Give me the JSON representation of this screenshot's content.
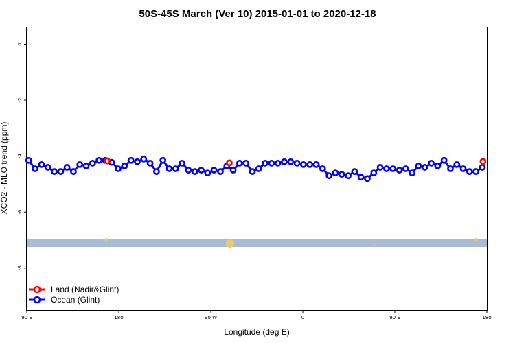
{
  "chart_data": {
    "type": "line",
    "title": "50S-45S March (Ver 10)   2015-01-01 to 2020-12-18",
    "xlabel": "Longitude (deg E)",
    "ylabel": "XCO2 - MLO trend (ppm)",
    "xlim": [
      90,
      450
    ],
    "ylim": [
      -9.5,
      0.6
    ],
    "x_ticks": [
      {
        "value": 90,
        "label": "90 E"
      },
      {
        "value": 162,
        "label": "180"
      },
      {
        "value": 234,
        "label": "90 W"
      },
      {
        "value": 306,
        "label": "0"
      },
      {
        "value": 378,
        "label": "90 E"
      },
      {
        "value": 450,
        "label": "180"
      }
    ],
    "y_ticks": [
      0,
      -2,
      -4,
      -6,
      -8
    ],
    "grid": false,
    "legend_position": "bottom-left",
    "series": [
      {
        "name": "Land (Nadir&Glint)",
        "color": "#ff0000",
        "x": [
          153,
          248.5,
          447
        ],
        "y": [
          -4.17,
          -4.24,
          -4.19
        ]
      },
      {
        "name": "Ocean (Glint)",
        "color": "#0000ff",
        "x": [
          91.5,
          96.5,
          101.5,
          106.5,
          111.5,
          116.5,
          121.5,
          126.5,
          131.5,
          136.5,
          141.5,
          146.5,
          151.5,
          156.5,
          161.5,
          166.5,
          171.5,
          176.5,
          181.5,
          186.5,
          191.5,
          196.5,
          201.5,
          206.5,
          211.5,
          216.5,
          221.5,
          226.5,
          231.5,
          236.5,
          241.5,
          246.5,
          251.5,
          256.5,
          261.5,
          266.5,
          271.5,
          276.5,
          281.5,
          286.5,
          291.5,
          296.5,
          301.5,
          306.5,
          311.5,
          316.5,
          321.5,
          326.5,
          331.5,
          336.5,
          341.5,
          346.5,
          351.5,
          356.5,
          361.5,
          366.5,
          371.5,
          376.5,
          381.5,
          386.5,
          391.5,
          396.5,
          401.5,
          406.5,
          411.5,
          416.5,
          421.5,
          426.5,
          431.5,
          436.5,
          441.5,
          446.5
        ],
        "y": [
          -4.15,
          -4.45,
          -4.3,
          -4.4,
          -4.55,
          -4.55,
          -4.4,
          -4.55,
          -4.3,
          -4.35,
          -4.25,
          -4.15,
          -4.15,
          -4.22,
          -4.45,
          -4.35,
          -4.15,
          -4.2,
          -4.1,
          -4.25,
          -4.55,
          -4.15,
          -4.45,
          -4.45,
          -4.25,
          -4.5,
          -4.55,
          -4.5,
          -4.6,
          -4.5,
          -4.55,
          -4.35,
          -4.5,
          -4.25,
          -4.25,
          -4.55,
          -4.45,
          -4.25,
          -4.25,
          -4.25,
          -4.2,
          -4.2,
          -4.25,
          -4.3,
          -4.3,
          -4.3,
          -4.45,
          -4.7,
          -4.6,
          -4.65,
          -4.7,
          -4.55,
          -4.75,
          -4.8,
          -4.6,
          -4.4,
          -4.45,
          -4.45,
          -4.5,
          -4.45,
          -4.6,
          -4.35,
          -4.4,
          -4.25,
          -4.35,
          -4.15,
          -4.45,
          -4.3,
          -4.45,
          -4.55,
          -4.55,
          -4.4
        ]
      }
    ]
  }
}
